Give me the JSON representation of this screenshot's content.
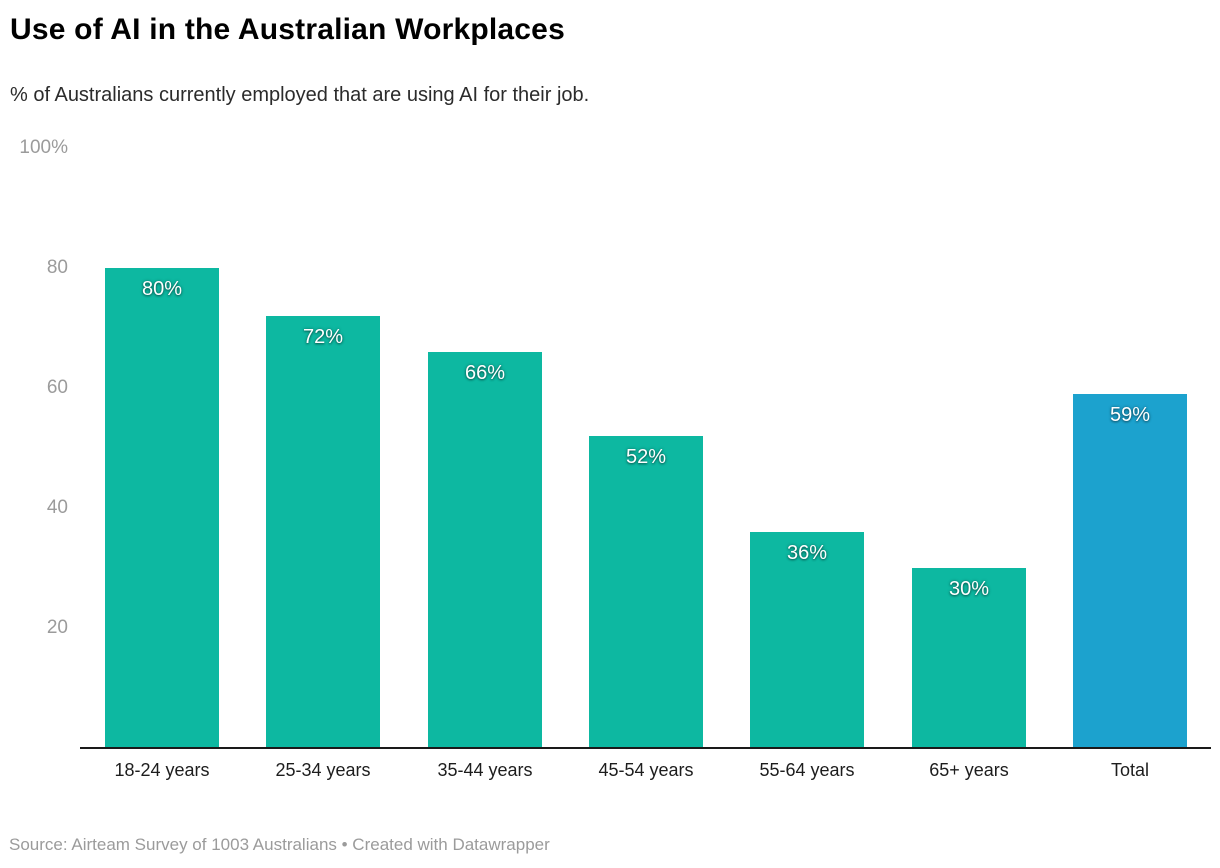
{
  "header": {
    "title": "Use of AI in the Australian Workplaces",
    "subtitle": "% of Australians currently employed that are using AI for their job."
  },
  "footer": {
    "source": "Source: Airteam Survey of 1003 Australians • Created with Datawrapper"
  },
  "colors": {
    "bar_teal": "#0db8a1",
    "bar_total_blue": "#1ca2ce",
    "axis_line": "#1a1a1a",
    "tick_label": "#9b9b9b",
    "value_label": "#ffffff",
    "category_label": "#1d1d1d",
    "source_text": "#9b9b9b"
  },
  "chart_data": {
    "type": "bar",
    "title": "Use of AI in the Australian Workplaces",
    "subtitle": "% of Australians currently employed that are using AI for their job.",
    "categories": [
      "18-24 years",
      "25-34 years",
      "35-44 years",
      "45-54 years",
      "55-64 years",
      "65+ years",
      "Total"
    ],
    "values": [
      80,
      72,
      66,
      52,
      36,
      30,
      59
    ],
    "value_labels": [
      "80%",
      "72%",
      "66%",
      "52%",
      "36%",
      "30%",
      "59%"
    ],
    "highlight_index": 6,
    "highlight_note": "Total bar is blue; all age-group bars are teal",
    "xlabel": "",
    "ylabel": "",
    "ylim": [
      0,
      100
    ],
    "yticks": [
      {
        "value": 100,
        "label": "100%"
      },
      {
        "value": 80,
        "label": "80"
      },
      {
        "value": 60,
        "label": "60"
      },
      {
        "value": 40,
        "label": "40"
      },
      {
        "value": 20,
        "label": "20"
      }
    ],
    "grid": false,
    "legend": "none",
    "value_label_position": "inside-top",
    "source": "Source: Airteam Survey of 1003 Australians • Created with Datawrapper"
  }
}
